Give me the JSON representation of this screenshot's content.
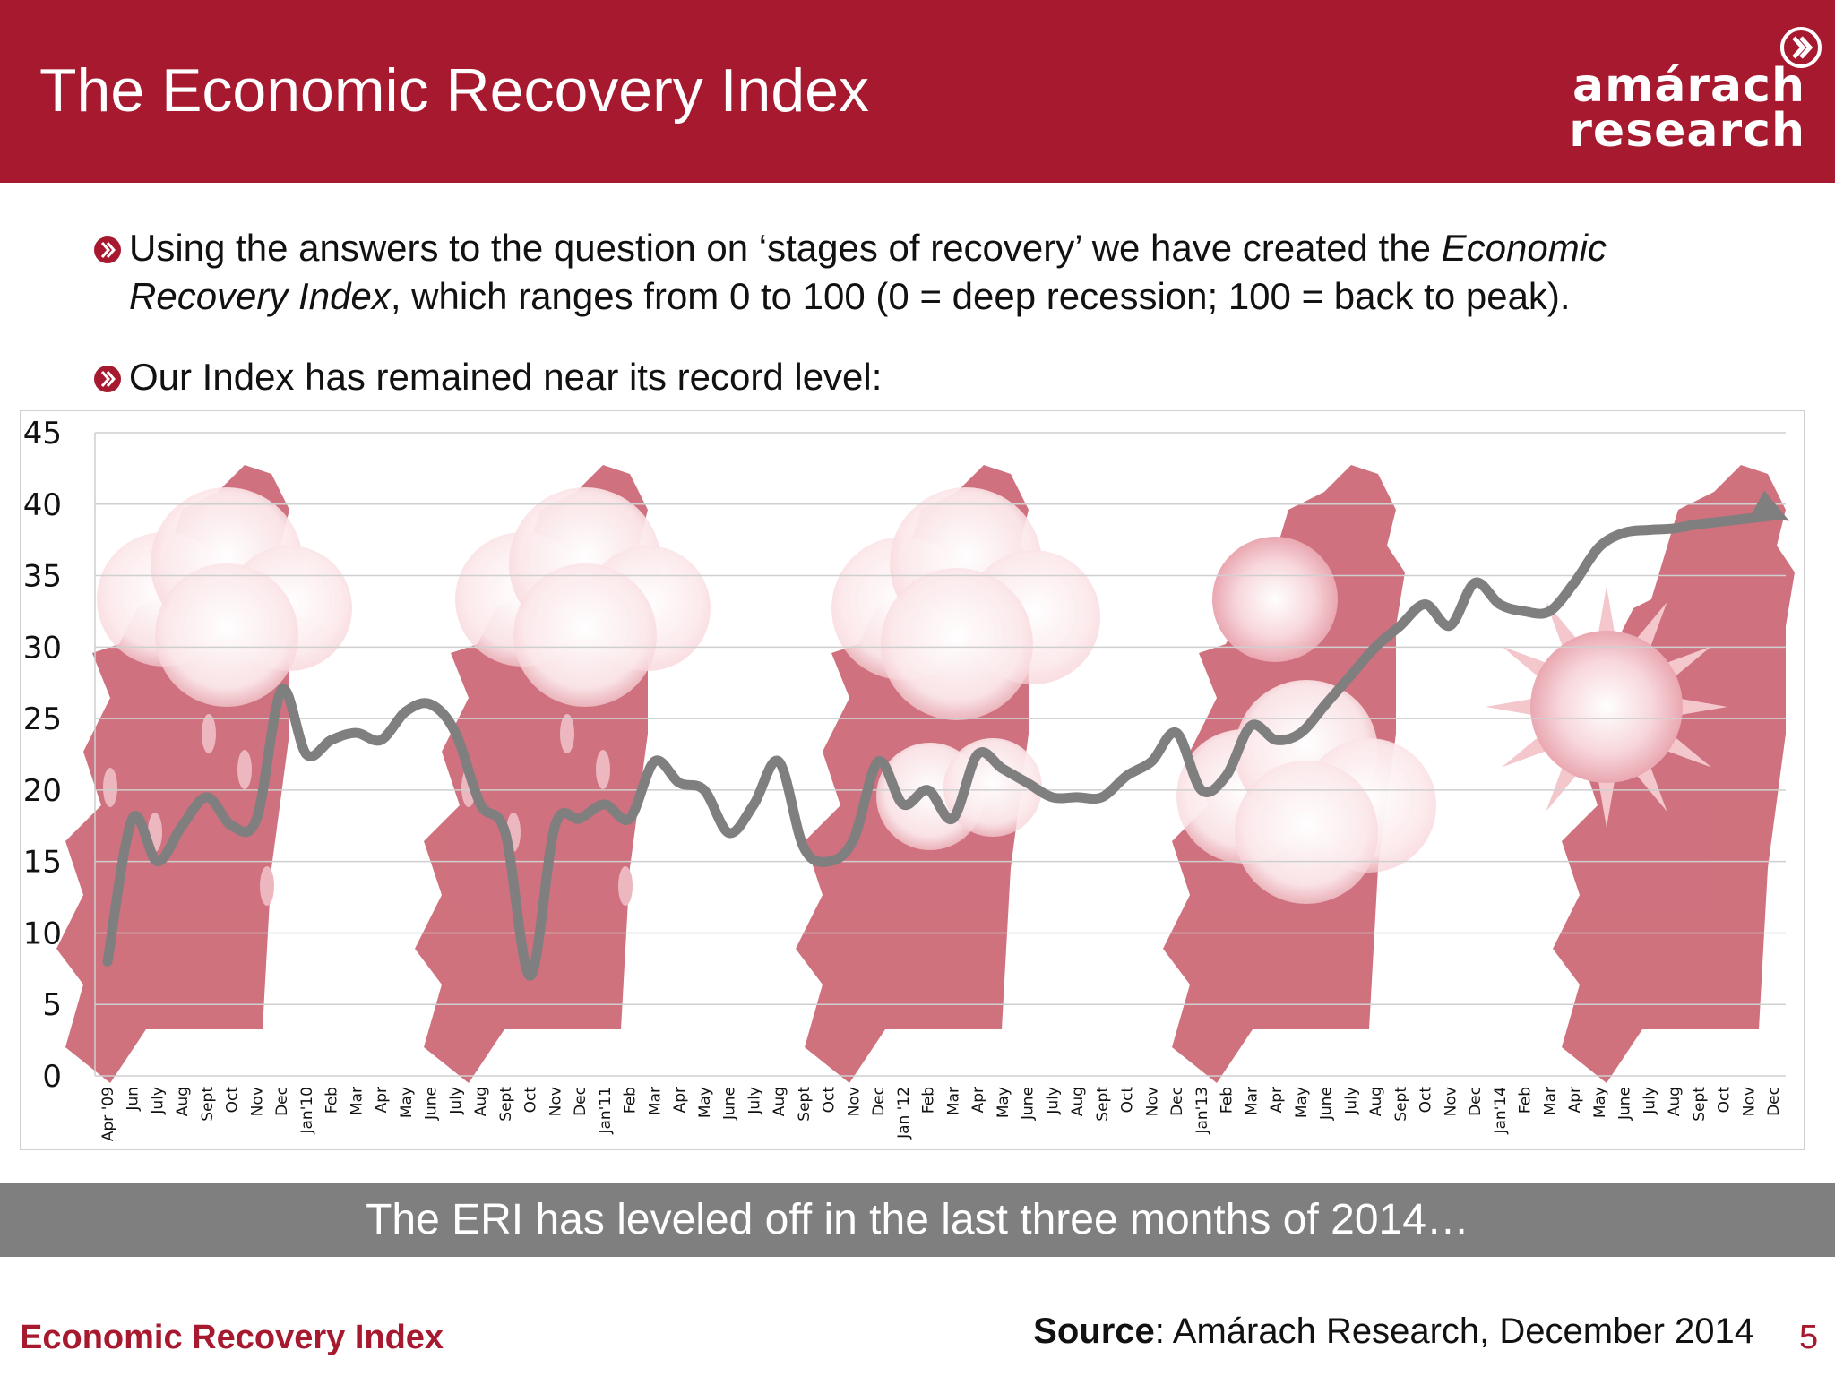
{
  "slide": {
    "title": "The Economic Recovery Index",
    "logo": {
      "line1": "amárach",
      "line2": "research"
    },
    "bullets": [
      {
        "line1_pre": "Using the answers to the question on ‘stages of recovery’ we have created the ",
        "line1_em": "Economic",
        "line2_em": "Recovery Index",
        "line2_post": ", which ranges from 0 to 100 (0 = deep recession; 100 = back to peak)."
      },
      {
        "text": "Our Index has remained near its record level:"
      }
    ],
    "banner": "The ERI has leveled off in the last three months of 2014…",
    "footer_label": "Economic Recovery Index",
    "source_label": "Source",
    "source_text": ": Amárach Research, December 2014",
    "page_number": "5"
  },
  "colors": {
    "brand_red": "#a6192e",
    "banner_grey": "#7f7f7f",
    "line_grey": "#7f7f7f",
    "map_pink": "#c24a5a"
  },
  "chart_data": {
    "type": "line",
    "ylim": [
      0,
      45
    ],
    "yticks": [
      0,
      5,
      10,
      15,
      20,
      25,
      30,
      35,
      40,
      45
    ],
    "grid": true,
    "legend": "none",
    "background_icons": [
      "map-rain-icon",
      "map-rain-icon",
      "map-cloud-icon",
      "map-sun-cloud-icon",
      "map-sun-icon"
    ],
    "categories": [
      "Apr '09",
      "Jun",
      "July",
      "Aug",
      "Sept",
      "Oct",
      "Nov",
      "Dec",
      "Jan'10",
      "Feb",
      "Mar",
      "Apr",
      "May",
      "June",
      "July",
      "Aug",
      "Sept",
      "Oct",
      "Nov",
      "Dec",
      "Jan'11",
      "Feb",
      "Mar",
      "Apr",
      "May",
      "June",
      "July",
      "Aug",
      "Sept",
      "Oct",
      "Nov",
      "Dec",
      "Jan '12",
      "Feb",
      "Mar",
      "Apr",
      "May",
      "June",
      "July",
      "Aug",
      "Sept",
      "Oct",
      "Nov",
      "Dec",
      "Jan'13",
      "Feb",
      "Mar",
      "Apr",
      "May",
      "June",
      "July",
      "Aug",
      "Sept",
      "Oct",
      "Nov",
      "Dec",
      "Jan'14",
      "Feb",
      "Mar",
      "Apr",
      "May",
      "June",
      "July",
      "Aug",
      "Sept",
      "Oct",
      "Nov",
      "Dec"
    ],
    "series": [
      {
        "values": [
          8,
          18,
          15,
          17.5,
          19.5,
          17.5,
          18,
          27,
          22.5,
          23.5,
          24,
          23.5,
          25.5,
          26,
          24,
          19,
          17,
          7,
          17.5,
          18,
          19,
          18,
          22,
          20.5,
          20,
          17,
          19,
          22,
          16,
          15,
          16.5,
          22,
          19,
          20,
          18,
          22.5,
          21.5,
          20.5,
          19.5,
          19.5,
          19.5,
          21,
          22,
          24,
          20,
          21,
          24.5,
          23.5,
          24,
          26,
          28,
          30,
          31.5,
          33,
          31.5,
          34.5,
          33,
          32.5,
          32.5,
          34.5,
          37,
          38,
          38.2,
          38.3,
          38.6,
          38.8,
          39,
          39.2
        ]
      }
    ]
  }
}
